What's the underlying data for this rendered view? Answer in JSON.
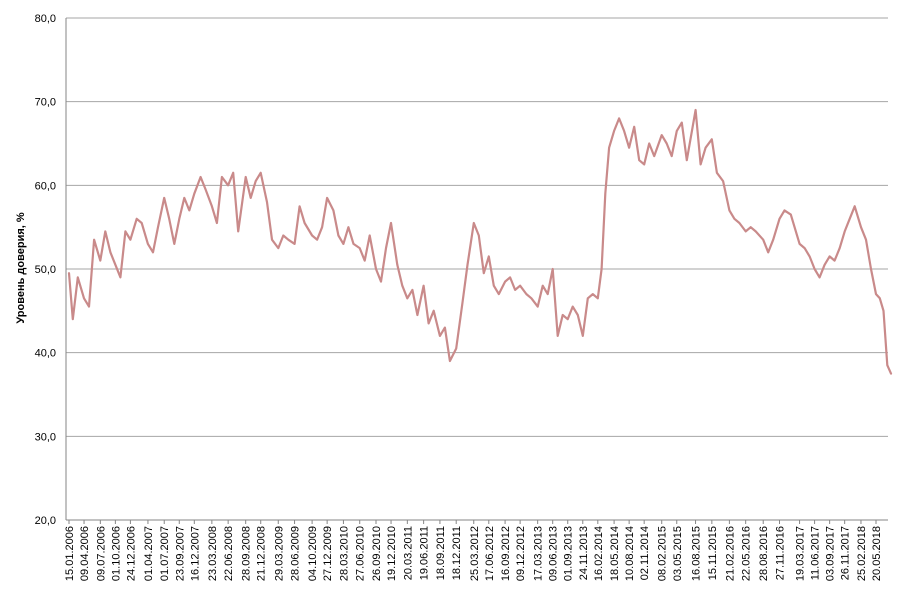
{
  "chart_data": {
    "type": "line",
    "ylabel": "Уровень доверия, %",
    "ylim": [
      20,
      80
    ],
    "yticks": [
      "20,0",
      "30,0",
      "40,0",
      "50,0",
      "60,0",
      "70,0",
      "80,0"
    ],
    "grid": true,
    "xtick_labels": [
      "15.01.2006",
      "09.04.2006",
      "09.07.2006",
      "01.10.2006",
      "24.12.2006",
      "01.04.2007",
      "01.07.2007",
      "23.09.2007",
      "16.12.2007",
      "23.03.2008",
      "22.06.2008",
      "28.09.2008",
      "21.12.2008",
      "29.03.2009",
      "28.06.2009",
      "04.10.2009",
      "27.12.2009",
      "28.03.2010",
      "27.06.2010",
      "26.09.2010",
      "19.12.2010",
      "20.03.2011",
      "19.06.2011",
      "18.09.2011",
      "18.12.2011",
      "25.03.2012",
      "17.06.2012",
      "16.09.2012",
      "09.12.2012",
      "17.03.2013",
      "09.06.2013",
      "01.09.2013",
      "24.11.2013",
      "16.02.2014",
      "18.05.2014",
      "10.08.2014",
      "02.11.2014",
      "08.02.2015",
      "03.05.2015",
      "16.08.2015",
      "15.11.2015",
      "21.02.2016",
      "22.05.2016",
      "28.08.2016",
      "27.11.2016",
      "19.03.2017",
      "11.06.2017",
      "03.09.2017",
      "26.11.2017",
      "25.02.2018",
      "20.05.2018"
    ],
    "series": [
      {
        "color": "#c98a8a",
        "x": [
          "2006-01-15",
          "2006-02-05",
          "2006-03-05",
          "2006-04-09",
          "2006-05-07",
          "2006-06-04",
          "2006-07-09",
          "2006-08-06",
          "2006-09-03",
          "2006-10-01",
          "2006-10-29",
          "2006-11-26",
          "2006-12-24",
          "2007-01-28",
          "2007-02-25",
          "2007-04-01",
          "2007-04-29",
          "2007-05-27",
          "2007-07-01",
          "2007-07-29",
          "2007-08-26",
          "2007-09-23",
          "2007-10-21",
          "2007-11-18",
          "2007-12-16",
          "2008-01-20",
          "2008-02-17",
          "2008-03-23",
          "2008-04-20",
          "2008-05-18",
          "2008-06-22",
          "2008-07-20",
          "2008-08-17",
          "2008-09-28",
          "2008-10-26",
          "2008-11-23",
          "2008-12-21",
          "2009-01-25",
          "2009-02-22",
          "2009-03-29",
          "2009-04-26",
          "2009-05-24",
          "2009-06-28",
          "2009-07-26",
          "2009-08-23",
          "2009-10-04",
          "2009-11-01",
          "2009-11-29",
          "2009-12-27",
          "2010-01-31",
          "2010-02-28",
          "2010-03-28",
          "2010-04-25",
          "2010-05-23",
          "2010-06-27",
          "2010-07-25",
          "2010-08-22",
          "2010-09-26",
          "2010-10-24",
          "2010-11-21",
          "2010-12-19",
          "2011-01-23",
          "2011-02-20",
          "2011-03-20",
          "2011-04-17",
          "2011-05-15",
          "2011-06-19",
          "2011-07-17",
          "2011-08-14",
          "2011-09-18",
          "2011-10-16",
          "2011-11-13",
          "2011-12-18",
          "2012-01-22",
          "2012-02-19",
          "2012-03-25",
          "2012-04-22",
          "2012-05-20",
          "2012-06-17",
          "2012-07-15",
          "2012-08-12",
          "2012-09-16",
          "2012-10-14",
          "2012-11-11",
          "2012-12-09",
          "2013-01-13",
          "2013-02-10",
          "2013-03-17",
          "2013-04-14",
          "2013-05-12",
          "2013-06-09",
          "2013-07-07",
          "2013-08-04",
          "2013-09-01",
          "2013-09-29",
          "2013-10-27",
          "2013-11-24",
          "2013-12-22",
          "2014-01-19",
          "2014-02-16",
          "2014-03-09",
          "2014-03-30",
          "2014-04-20",
          "2014-05-18",
          "2014-06-15",
          "2014-07-13",
          "2014-08-10",
          "2014-09-07",
          "2014-10-05",
          "2014-11-02",
          "2014-11-30",
          "2014-12-28",
          "2015-02-08",
          "2015-03-08",
          "2015-04-05",
          "2015-05-03",
          "2015-05-31",
          "2015-06-28",
          "2015-08-16",
          "2015-09-13",
          "2015-10-11",
          "2015-11-15",
          "2015-12-13",
          "2016-01-17",
          "2016-02-21",
          "2016-03-20",
          "2016-04-17",
          "2016-05-22",
          "2016-06-19",
          "2016-07-17",
          "2016-08-28",
          "2016-09-25",
          "2016-10-23",
          "2016-11-27",
          "2016-12-25",
          "2017-01-29",
          "2017-03-19",
          "2017-04-16",
          "2017-05-14",
          "2017-06-11",
          "2017-07-09",
          "2017-08-06",
          "2017-09-03",
          "2017-10-01",
          "2017-10-29",
          "2017-11-26",
          "2017-12-24",
          "2018-01-21",
          "2018-02-25",
          "2018-03-25",
          "2018-04-22",
          "2018-05-20",
          "2018-06-10",
          "2018-07-01",
          "2018-07-22",
          "2018-08-12"
        ],
        "values": [
          49.5,
          44.0,
          49.0,
          46.5,
          45.5,
          53.5,
          51.0,
          54.5,
          52.0,
          50.5,
          49.0,
          54.5,
          53.5,
          56.0,
          55.5,
          53.0,
          52.0,
          55.0,
          58.5,
          56.0,
          53.0,
          56.0,
          58.5,
          57.0,
          59.0,
          61.0,
          59.5,
          57.5,
          55.5,
          61.0,
          60.0,
          61.5,
          54.5,
          61.0,
          58.5,
          60.5,
          61.5,
          58.0,
          53.5,
          52.5,
          54.0,
          53.5,
          53.0,
          57.5,
          55.5,
          54.0,
          53.5,
          55.0,
          58.5,
          57.0,
          54.0,
          53.0,
          55.0,
          53.0,
          52.5,
          51.0,
          54.0,
          50.0,
          48.5,
          52.5,
          55.5,
          50.5,
          48.0,
          46.5,
          47.5,
          44.5,
          48.0,
          43.5,
          45.0,
          42.0,
          43.0,
          39.0,
          40.5,
          46.0,
          50.5,
          55.5,
          54.0,
          49.5,
          51.5,
          48.0,
          47.0,
          48.5,
          49.0,
          47.5,
          48.0,
          47.0,
          46.5,
          45.5,
          48.0,
          47.0,
          50.0,
          42.0,
          44.5,
          44.0,
          45.5,
          44.5,
          42.0,
          46.5,
          47.0,
          46.5,
          50.0,
          59.0,
          64.5,
          66.5,
          68.0,
          66.5,
          64.5,
          67.0,
          63.0,
          62.5,
          65.0,
          63.5,
          66.0,
          65.0,
          63.5,
          66.5,
          67.5,
          63.0,
          69.0,
          62.5,
          64.5,
          65.5,
          61.5,
          60.5,
          57.0,
          56.0,
          55.5,
          54.5,
          55.0,
          54.5,
          53.5,
          52.0,
          53.5,
          56.0,
          57.0,
          56.5,
          53.0,
          52.5,
          51.5,
          50.0,
          49.0,
          50.5,
          51.5,
          51.0,
          52.5,
          54.5,
          56.0,
          57.5,
          55.0,
          53.5,
          50.0,
          47.0,
          46.5,
          45.0,
          38.5,
          37.5
        ]
      }
    ]
  }
}
